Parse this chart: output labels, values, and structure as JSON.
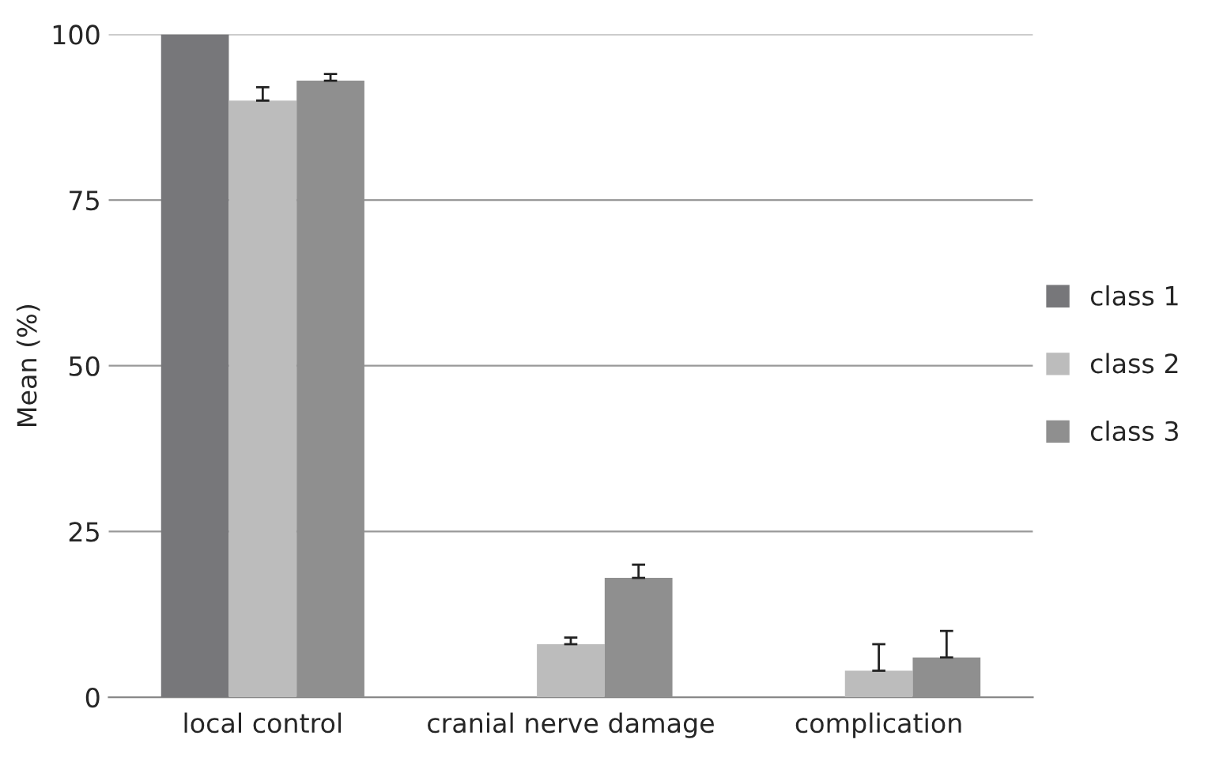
{
  "chart_data": {
    "type": "bar",
    "ylabel": "Mean (%)",
    "categories": [
      "local control",
      "cranial nerve damage",
      "complication"
    ],
    "series": [
      {
        "name": "class 1",
        "color": "#77777a",
        "values": [
          100,
          null,
          null
        ],
        "errors": [
          null,
          null,
          null
        ]
      },
      {
        "name": "class 2",
        "color": "#bcbcbc",
        "values": [
          90,
          8,
          4
        ],
        "errors": [
          [
            90,
            92
          ],
          [
            8,
            9
          ],
          [
            4,
            8
          ]
        ]
      },
      {
        "name": "class 3",
        "color": "#8f8f8f",
        "values": [
          93,
          18,
          6
        ],
        "errors": [
          [
            93,
            94
          ],
          [
            18,
            20
          ],
          [
            6,
            10
          ]
        ]
      }
    ],
    "ylim": [
      0,
      100
    ],
    "yticks": [
      0,
      25,
      50,
      75,
      100
    ],
    "grid": "y",
    "legend": "right"
  }
}
